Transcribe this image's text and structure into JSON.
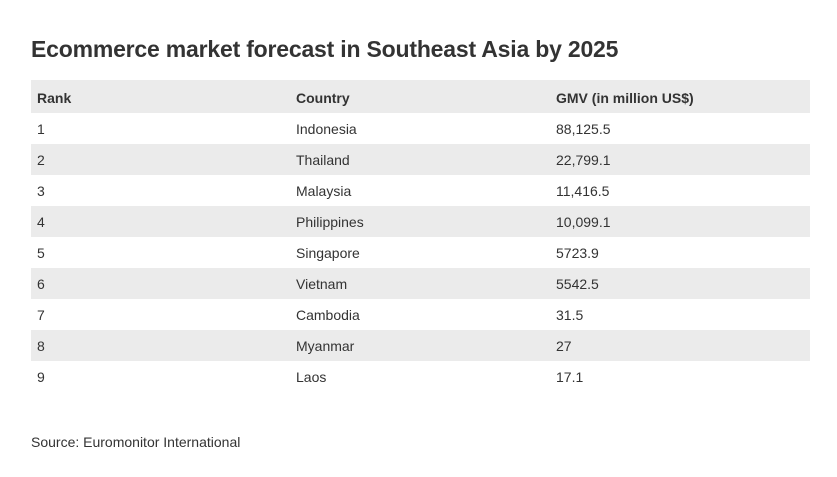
{
  "title": "Ecommerce market forecast in Southeast Asia by 2025",
  "source": "Source: Euromonitor International",
  "chart_data": {
    "type": "table",
    "title": "Ecommerce market forecast in Southeast Asia by 2025",
    "columns": [
      "Rank",
      "Country",
      "GMV (in million US$)"
    ],
    "rows": [
      [
        "1",
        "Indonesia",
        "88,125.5"
      ],
      [
        "2",
        "Thailand",
        "22,799.1"
      ],
      [
        "3",
        "Malaysia",
        "11,416.5"
      ],
      [
        "4",
        "Philippines",
        "10,099.1"
      ],
      [
        "5",
        "Singapore",
        "5723.9"
      ],
      [
        "6",
        "Vietnam",
        "5542.5"
      ],
      [
        "7",
        "Cambodia",
        "31.5"
      ],
      [
        "8",
        "Myanmar",
        "27"
      ],
      [
        "9",
        "Laos",
        "17.1"
      ]
    ],
    "source": "Source: Euromonitor International"
  },
  "colors": {
    "text": "#333333",
    "stripe": "#ebebeb",
    "background": "#ffffff"
  }
}
